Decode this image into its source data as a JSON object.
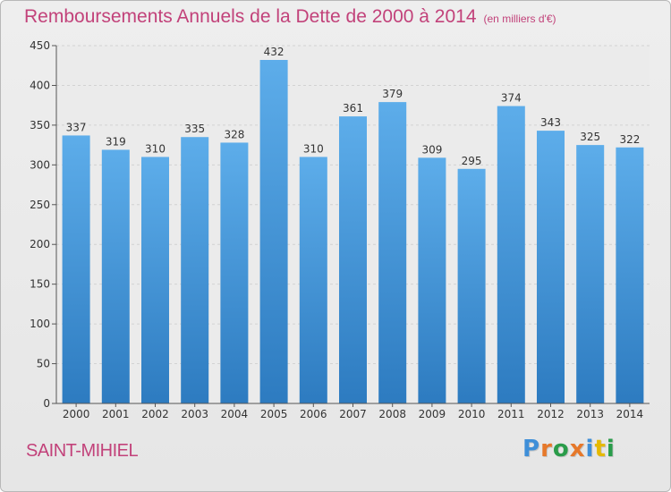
{
  "chart_data": {
    "type": "bar",
    "title": "Remboursements Annuels de la Dette de 2000 à 2014",
    "subtitle": "(en milliers d'€)",
    "categories": [
      "2000",
      "2001",
      "2002",
      "2003",
      "2004",
      "2005",
      "2006",
      "2007",
      "2008",
      "2009",
      "2010",
      "2011",
      "2012",
      "2013",
      "2014"
    ],
    "values": [
      337,
      319,
      310,
      335,
      328,
      432,
      310,
      361,
      379,
      309,
      295,
      374,
      343,
      325,
      322
    ],
    "ylim": [
      0,
      450
    ],
    "yticks": [
      0,
      50,
      100,
      150,
      200,
      250,
      300,
      350,
      400,
      450
    ],
    "xlabel": "",
    "ylabel": "",
    "grid": true,
    "bar_color": "#3d8fd6"
  },
  "footer": {
    "place": "SAINT-MIHIEL",
    "brand": [
      "P",
      "r",
      "o",
      "x",
      "i",
      "t",
      "i"
    ],
    "brand_colors": [
      "#3f8fd8",
      "#e6782a",
      "#2a9c4a",
      "#e6782a",
      "#3f8fd8",
      "#e5b900",
      "#2a9c4a"
    ]
  }
}
